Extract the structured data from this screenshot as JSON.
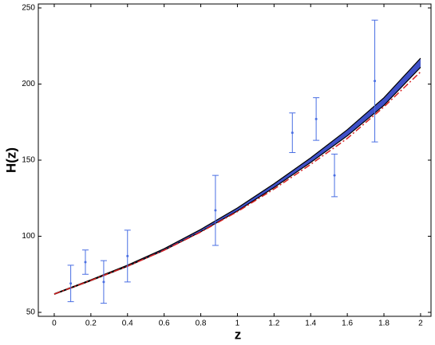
{
  "chart_data": {
    "type": "errorbar",
    "xlabel": "z",
    "ylabel": "H(z)",
    "xlim": [
      -0.087,
      2.057
    ],
    "ylim": [
      47.4,
      252.6
    ],
    "xticks": [
      0,
      0.2,
      0.4,
      0.6,
      0.8,
      1,
      1.2,
      1.4,
      1.6,
      1.8,
      2
    ],
    "yticks": [
      50,
      100,
      150,
      200,
      250
    ],
    "observations": {
      "x": [
        0.09,
        0.17,
        0.27,
        0.4,
        0.88,
        1.3,
        1.43,
        1.53,
        1.75
      ],
      "values": [
        69,
        83,
        70,
        87,
        117,
        168,
        177,
        140,
        202
      ],
      "errors": [
        12,
        8,
        14,
        17,
        23,
        13,
        14,
        14,
        40
      ],
      "color": "#4a6fe3"
    },
    "band": {
      "x": [
        0,
        0.2,
        0.4,
        0.6,
        0.8,
        1,
        1.2,
        1.4,
        1.6,
        1.8,
        2
      ],
      "lower": [
        61.8,
        70.8,
        80.2,
        90.8,
        103,
        116.6,
        132,
        148.5,
        166,
        186,
        211
      ],
      "upper": [
        62.2,
        71.4,
        81,
        91.8,
        104.5,
        118.6,
        134.5,
        151.5,
        170,
        191,
        217
      ],
      "color": "#3f51c8",
      "edge_color": "#000000"
    },
    "reference": {
      "x": [
        0,
        0.2,
        0.4,
        0.6,
        0.8,
        1,
        1.2,
        1.4,
        1.6,
        1.8,
        2
      ],
      "values": [
        62,
        71,
        80.3,
        90.8,
        102.8,
        116.2,
        131,
        147.2,
        164.3,
        185,
        208
      ],
      "color": "#d62020",
      "dashed": true
    }
  }
}
